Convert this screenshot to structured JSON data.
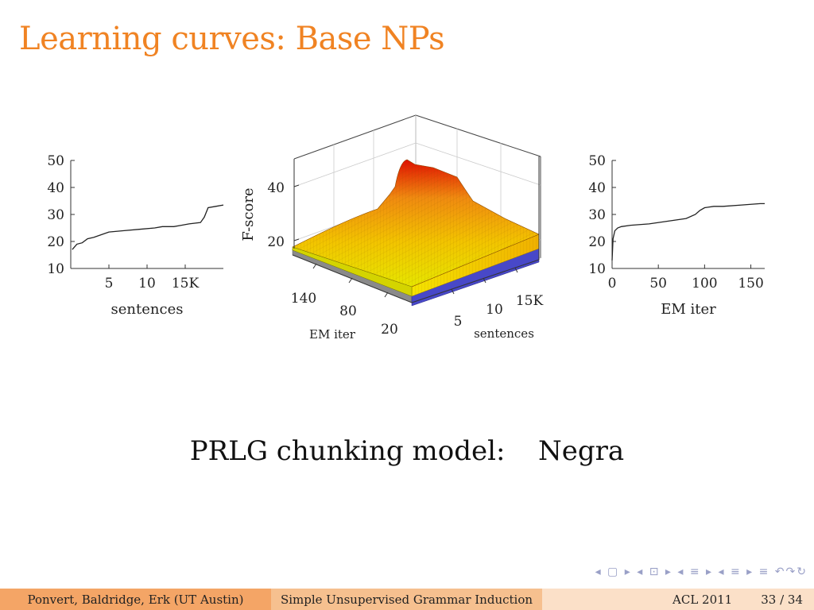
{
  "title": "Learning curves: Base NPs",
  "caption": {
    "model": "PRLG chunking model:",
    "dataset": "Negra"
  },
  "chart_data": [
    {
      "type": "line",
      "xlabel": "sentences",
      "ylabel": "",
      "yticks": [
        10,
        20,
        30,
        40,
        50
      ],
      "xticks": [
        5,
        10,
        15
      ],
      "xticklabels": [
        "5",
        "10",
        "15K"
      ],
      "xlim": [
        0,
        20
      ],
      "ylim": [
        10,
        50
      ],
      "x": [
        0.2,
        0.8,
        1.5,
        2.2,
        3,
        4,
        5,
        7,
        9,
        11,
        12,
        13.5,
        14.5,
        15.5,
        17,
        17.5,
        18,
        19,
        20
      ],
      "y": [
        17,
        19,
        19.5,
        21,
        21.5,
        22.5,
        23.5,
        24,
        24.5,
        25,
        25.5,
        25.5,
        26,
        26.5,
        27,
        29,
        32.5,
        33,
        33.5
      ]
    },
    {
      "type": "surface3d",
      "zlabel": "F-score",
      "xlabel": "EM iter",
      "ylabel": "sentences",
      "zticks": [
        20,
        40
      ],
      "xticks": [
        20,
        80,
        140
      ],
      "yticks": [
        5,
        10,
        15
      ],
      "yticklabels": [
        "5",
        "10",
        "15K"
      ],
      "zlim": [
        10,
        50
      ]
    },
    {
      "type": "line",
      "xlabel": "EM iter",
      "ylabel": "",
      "yticks": [
        10,
        20,
        30,
        40,
        50
      ],
      "xticks": [
        0,
        50,
        100,
        150
      ],
      "xticklabels": [
        "0",
        "50",
        "100",
        "150"
      ],
      "xlim": [
        0,
        165
      ],
      "ylim": [
        10,
        50
      ],
      "x": [
        0,
        1,
        3,
        6,
        10,
        20,
        40,
        60,
        80,
        90,
        95,
        100,
        110,
        120,
        140,
        160,
        165
      ],
      "y": [
        13,
        21,
        24,
        25,
        25.5,
        26,
        26.5,
        27.5,
        28.5,
        30,
        31.5,
        32.5,
        33,
        33,
        33.5,
        34,
        34
      ]
    }
  ],
  "nav": {
    "symbols": "◂ ▢ ▸ ◂ ⊡ ▸ ◂ ≡ ▸ ◂ ≡ ▸ ≡ ↶↷↻"
  },
  "footer": {
    "authors": "Ponvert, Baldridge, Erk (UT Austin)",
    "talk_title": "Simple Unsupervised Grammar Induction",
    "conference": "ACL 2011",
    "page": "33 / 34"
  }
}
